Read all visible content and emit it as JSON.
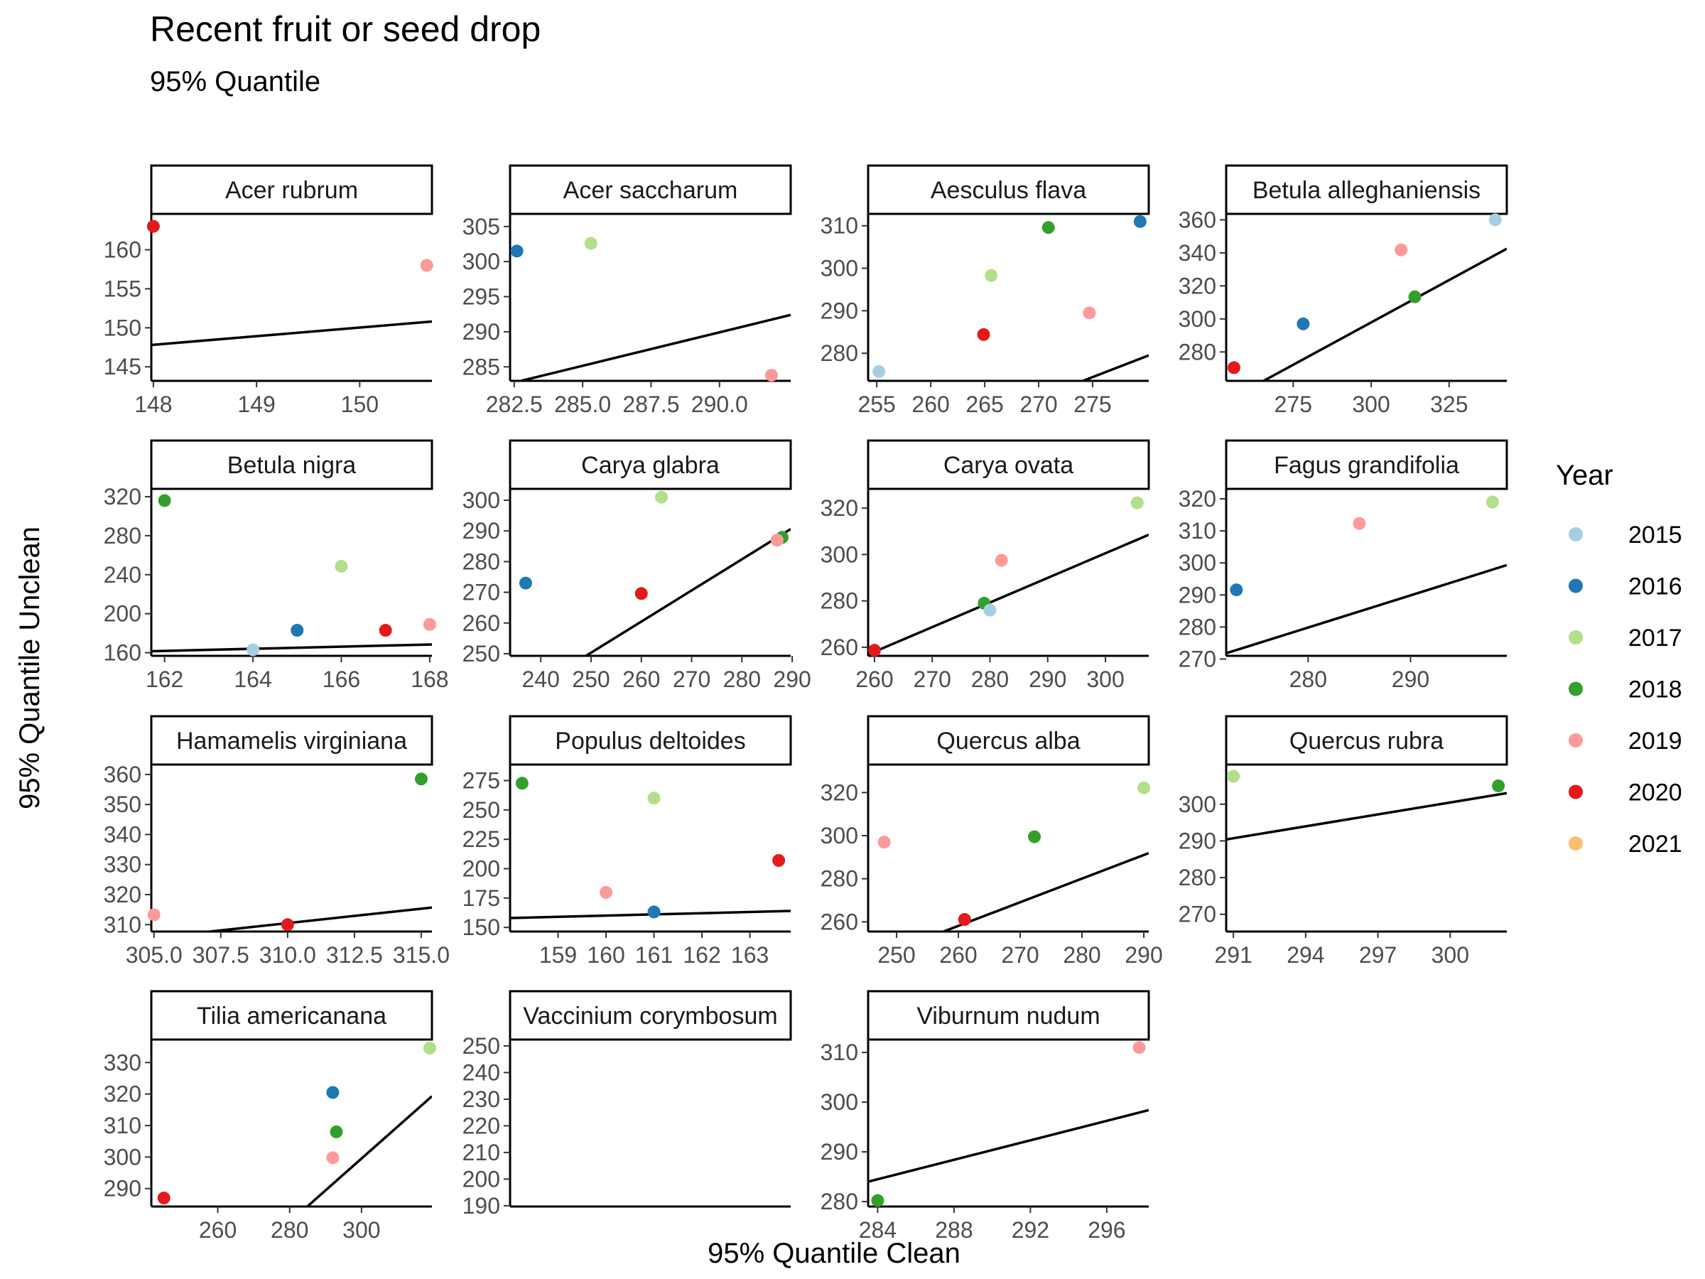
{
  "chart_data": {
    "type": "scatter",
    "title": "Recent fruit or seed drop",
    "subtitle": "95% Quantile",
    "xlabel": "95% Quantile Clean",
    "ylabel": "95% Quantile Unclean",
    "legend_title": "Year",
    "legend_placement": "right",
    "legend": [
      {
        "label": "2015",
        "color": "#a6cee3"
      },
      {
        "label": "2016",
        "color": "#1f78b4"
      },
      {
        "label": "2017",
        "color": "#b2df8a"
      },
      {
        "label": "2018",
        "color": "#33a02c"
      },
      {
        "label": "2019",
        "color": "#fb9a99"
      },
      {
        "label": "2020",
        "color": "#e31a1c"
      },
      {
        "label": "2021",
        "color": "#fdbf6f"
      }
    ],
    "panels": [
      {
        "name": "Acer rubrum",
        "xlim": [
          147.98,
          150.7
        ],
        "ylim": [
          143.2,
          164.6
        ],
        "xticks": [
          148,
          149,
          150
        ],
        "xtick_labels": [
          "148",
          "149",
          "150"
        ],
        "yticks": [
          145,
          150,
          155,
          160
        ],
        "ytick_labels": [
          "145",
          "150",
          "155",
          "160"
        ],
        "line": [
          [
            147.98,
            147.8
          ],
          [
            150.7,
            150.8
          ]
        ],
        "points": [
          {
            "year": "2020",
            "x": 148,
            "y": 163
          },
          {
            "year": "2019",
            "x": 150.65,
            "y": 158
          }
        ]
      },
      {
        "name": "Acer saccharum",
        "xlim": [
          282.35,
          292.6
        ],
        "ylim": [
          283.0,
          306.8
        ],
        "xticks": [
          282.5,
          285,
          287.5,
          290
        ],
        "xtick_labels": [
          "282.5",
          "285.0",
          "287.5",
          "290.0"
        ],
        "yticks": [
          285,
          290,
          295,
          300,
          305
        ],
        "ytick_labels": [
          "285",
          "290",
          "295",
          "300",
          "305"
        ],
        "line": [
          [
            282.75,
            283.0
          ],
          [
            292.6,
            292.4
          ]
        ],
        "points": [
          {
            "year": "2016",
            "x": 282.6,
            "y": 301.5
          },
          {
            "year": "2017",
            "x": 285.3,
            "y": 302.6
          },
          {
            "year": "2019",
            "x": 291.9,
            "y": 283.8
          }
        ]
      },
      {
        "name": "Aesculus flava",
        "xlim": [
          254.2,
          280.2
        ],
        "ylim": [
          273.5,
          312.8
        ],
        "xticks": [
          255,
          260,
          265,
          270,
          275
        ],
        "xtick_labels": [
          "255",
          "260",
          "265",
          "270",
          "275"
        ],
        "yticks": [
          280,
          290,
          300,
          310
        ],
        "ytick_labels": [
          "280",
          "290",
          "300",
          "310"
        ],
        "line": [
          [
            274.1,
            273.5
          ],
          [
            280.2,
            279.5
          ]
        ],
        "points": [
          {
            "year": "2015",
            "x": 255.2,
            "y": 275.7
          },
          {
            "year": "2020",
            "x": 264.9,
            "y": 284.4
          },
          {
            "year": "2017",
            "x": 265.6,
            "y": 298.3
          },
          {
            "year": "2018",
            "x": 270.9,
            "y": 309.6
          },
          {
            "year": "2019",
            "x": 274.7,
            "y": 289.5
          },
          {
            "year": "2016",
            "x": 279.4,
            "y": 311.0
          }
        ]
      },
      {
        "name": "Betula alleghaniensis",
        "xlim": [
          253.5,
          343.5
        ],
        "ylim": [
          262.5,
          363.6
        ],
        "xticks": [
          275,
          300,
          325
        ],
        "xtick_labels": [
          "275",
          "300",
          "325"
        ],
        "yticks": [
          280,
          300,
          320,
          340,
          360
        ],
        "ytick_labels": [
          "280",
          "300",
          "320",
          "340",
          "360"
        ],
        "line": [
          [
            265.5,
            262.5
          ],
          [
            343.5,
            342.5
          ]
        ],
        "points": [
          {
            "year": "2020",
            "x": 256,
            "y": 270.5
          },
          {
            "year": "2016",
            "x": 278.2,
            "y": 297.0
          },
          {
            "year": "2019",
            "x": 309.6,
            "y": 341.8
          },
          {
            "year": "2018",
            "x": 314.0,
            "y": 313.4
          },
          {
            "year": "2015",
            "x": 339.8,
            "y": 360.0
          }
        ]
      },
      {
        "name": "Betula nigra",
        "xlim": [
          161.7,
          168.05
        ],
        "ylim": [
          156.8,
          328.0
        ],
        "xticks": [
          162,
          164,
          166,
          168
        ],
        "xtick_labels": [
          "162",
          "164",
          "166",
          "168"
        ],
        "yticks": [
          160,
          200,
          240,
          280,
          320
        ],
        "ytick_labels": [
          "160",
          "200",
          "240",
          "280",
          "320"
        ],
        "line": [
          [
            161.7,
            161.5
          ],
          [
            168.05,
            168.5
          ]
        ],
        "points": [
          {
            "year": "2018",
            "x": 162,
            "y": 316.0
          },
          {
            "year": "2015",
            "x": 164,
            "y": 163.0
          },
          {
            "year": "2016",
            "x": 165,
            "y": 183.0
          },
          {
            "year": "2017",
            "x": 166,
            "y": 248.6
          },
          {
            "year": "2020",
            "x": 167,
            "y": 183.0
          },
          {
            "year": "2019",
            "x": 168,
            "y": 189.0
          }
        ]
      },
      {
        "name": "Carya glabra",
        "xlim": [
          233.9,
          289.7
        ],
        "ylim": [
          249.3,
          303.7
        ],
        "xticks": [
          240,
          250,
          260,
          270,
          280,
          290
        ],
        "xtick_labels": [
          "240",
          "250",
          "260",
          "270",
          "280",
          "290"
        ],
        "yticks": [
          250,
          260,
          270,
          280,
          290,
          300
        ],
        "ytick_labels": [
          "250",
          "260",
          "270",
          "280",
          "290",
          "300"
        ],
        "line": [
          [
            249.0,
            249.3
          ],
          [
            289.7,
            290.6
          ]
        ],
        "points": [
          {
            "year": "2016",
            "x": 237,
            "y": 273.0
          },
          {
            "year": "2020",
            "x": 260,
            "y": 269.6
          },
          {
            "year": "2017",
            "x": 264,
            "y": 301.0
          },
          {
            "year": "2018",
            "x": 288,
            "y": 287.9
          },
          {
            "year": "2019",
            "x": 287,
            "y": 287.0
          }
        ]
      },
      {
        "name": "Carya ovata",
        "xlim": [
          258.9,
          307.5
        ],
        "ylim": [
          256.3,
          328.3
        ],
        "xticks": [
          260,
          270,
          280,
          290,
          300
        ],
        "xtick_labels": [
          "260",
          "270",
          "280",
          "290",
          "300"
        ],
        "yticks": [
          260,
          280,
          300,
          320
        ],
        "ytick_labels": [
          "260",
          "280",
          "300",
          "320"
        ],
        "line": [
          [
            258.9,
            256.9
          ],
          [
            307.5,
            308.5
          ]
        ],
        "points": [
          {
            "year": "2020",
            "x": 260,
            "y": 258.7
          },
          {
            "year": "2018",
            "x": 279,
            "y": 279.0
          },
          {
            "year": "2015",
            "x": 280,
            "y": 276.0
          },
          {
            "year": "2019",
            "x": 282,
            "y": 297.5
          },
          {
            "year": "2017",
            "x": 305.5,
            "y": 322.3
          }
        ]
      },
      {
        "name": "Fagus grandifolia",
        "xlim": [
          272.0,
          299.4
        ],
        "ylim": [
          271.0,
          323.1
        ],
        "xticks": [
          280,
          290
        ],
        "xtick_labels": [
          "280",
          "290"
        ],
        "yticks": [
          270,
          280,
          290,
          300,
          310,
          320
        ],
        "ytick_labels": [
          "270",
          "280",
          "290",
          "300",
          "310",
          "320"
        ],
        "line": [
          [
            272.0,
            271.8
          ],
          [
            299.4,
            299.3
          ]
        ],
        "points": [
          {
            "year": "2016",
            "x": 273,
            "y": 291.6
          },
          {
            "year": "2019",
            "x": 285,
            "y": 312.3
          },
          {
            "year": "2017",
            "x": 298,
            "y": 319.0
          }
        ]
      },
      {
        "name": "Hamamelis virginiana",
        "xlim": [
          304.9,
          315.4
        ],
        "ylim": [
          307.7,
          363.3
        ],
        "xticks": [
          305,
          307.5,
          310,
          312.5,
          315
        ],
        "xtick_labels": [
          "305.0",
          "307.5",
          "310.0",
          "312.5",
          "315.0"
        ],
        "yticks": [
          310,
          320,
          330,
          340,
          350,
          360
        ],
        "ytick_labels": [
          "310",
          "320",
          "330",
          "340",
          "350",
          "360"
        ],
        "line": [
          [
            307.1,
            307.7
          ],
          [
            315.4,
            315.7
          ]
        ],
        "points": [
          {
            "year": "2019",
            "x": 305,
            "y": 313.3
          },
          {
            "year": "2020",
            "x": 310,
            "y": 310.0
          },
          {
            "year": "2018",
            "x": 315,
            "y": 358.5
          }
        ]
      },
      {
        "name": "Populus deltoides",
        "xlim": [
          158.0,
          163.85
        ],
        "ylim": [
          146.5,
          288.6
        ],
        "xticks": [
          159,
          160,
          161,
          162,
          163
        ],
        "xtick_labels": [
          "159",
          "160",
          "161",
          "162",
          "163"
        ],
        "yticks": [
          150,
          175,
          200,
          225,
          250,
          275
        ],
        "ytick_labels": [
          "150",
          "175",
          "200",
          "225",
          "250",
          "275"
        ],
        "line": [
          [
            158.0,
            158.0
          ],
          [
            163.85,
            164.0
          ]
        ],
        "points": [
          {
            "year": "2018",
            "x": 158.25,
            "y": 272.7
          },
          {
            "year": "2019",
            "x": 160,
            "y": 179.8
          },
          {
            "year": "2017",
            "x": 161,
            "y": 260.0
          },
          {
            "year": "2016",
            "x": 161,
            "y": 163.2
          },
          {
            "year": "2020",
            "x": 163.6,
            "y": 207.0
          }
        ]
      },
      {
        "name": "Quercus alba",
        "xlim": [
          245.4,
          290.8
        ],
        "ylim": [
          255.5,
          333.0
        ],
        "xticks": [
          250,
          260,
          270,
          280,
          290
        ],
        "xtick_labels": [
          "250",
          "260",
          "270",
          "280",
          "290"
        ],
        "yticks": [
          260,
          280,
          300,
          320
        ],
        "ytick_labels": [
          "260",
          "280",
          "300",
          "320"
        ],
        "line": [
          [
            257.6,
            255.5
          ],
          [
            290.8,
            291.9
          ]
        ],
        "points": [
          {
            "year": "2019",
            "x": 248,
            "y": 297.0
          },
          {
            "year": "2020",
            "x": 261,
            "y": 261.1
          },
          {
            "year": "2018",
            "x": 272.3,
            "y": 299.5
          },
          {
            "year": "2017",
            "x": 290,
            "y": 322.2
          }
        ]
      },
      {
        "name": "Quercus rubra",
        "xlim": [
          290.7,
          302.35
        ],
        "ylim": [
          265.3,
          310.8
        ],
        "xticks": [
          291,
          294,
          297,
          300
        ],
        "xtick_labels": [
          "291",
          "294",
          "297",
          "300"
        ],
        "yticks": [
          270,
          280,
          290,
          300
        ],
        "ytick_labels": [
          "270",
          "280",
          "290",
          "300"
        ],
        "line": [
          [
            290.7,
            290.4
          ],
          [
            302.35,
            303.0
          ]
        ],
        "points": [
          {
            "year": "2017",
            "x": 291,
            "y": 307.6
          },
          {
            "year": "2018",
            "x": 302,
            "y": 305.0
          }
        ]
      },
      {
        "name": "Tilia americanana",
        "xlim": [
          241.5,
          319.6
        ],
        "ylim": [
          284.3,
          337.3
        ],
        "xticks": [
          260,
          280,
          300
        ],
        "xtick_labels": [
          "260",
          "280",
          "300"
        ],
        "yticks": [
          290,
          300,
          310,
          320,
          330
        ],
        "ytick_labels": [
          "290",
          "300",
          "310",
          "320",
          "330"
        ],
        "line": [
          [
            284.9,
            284.3
          ],
          [
            319.6,
            319.3
          ]
        ],
        "points": [
          {
            "year": "2020",
            "x": 245,
            "y": 287.0
          },
          {
            "year": "2016",
            "x": 292,
            "y": 320.5
          },
          {
            "year": "2018",
            "x": 293,
            "y": 308.0
          },
          {
            "year": "2019",
            "x": 292,
            "y": 299.8
          },
          {
            "year": "2017",
            "x": 319,
            "y": 334.6
          }
        ]
      },
      {
        "name": "Vaccinium corymbosum",
        "xlim": [
          0,
          1
        ],
        "ylim": [
          189.7,
          252.4
        ],
        "xticks": [],
        "xtick_labels": [],
        "yticks": [
          190,
          200,
          210,
          220,
          230,
          240,
          250
        ],
        "ytick_labels": [
          "190",
          "200",
          "210",
          "220",
          "230",
          "240",
          "250"
        ],
        "line": [],
        "points": []
      },
      {
        "name": "Viburnum nudum",
        "xlim": [
          283.5,
          298.2
        ],
        "ylim": [
          279.0,
          312.6
        ],
        "xticks": [
          284,
          288,
          292,
          296
        ],
        "xtick_labels": [
          "284",
          "288",
          "292",
          "296"
        ],
        "yticks": [
          280,
          290,
          300,
          310
        ],
        "ytick_labels": [
          "280",
          "290",
          "300",
          "310"
        ],
        "line": [
          [
            283.5,
            284.0
          ],
          [
            298.2,
            298.4
          ]
        ],
        "points": [
          {
            "year": "2018",
            "x": 284,
            "y": 280.2
          },
          {
            "year": "2019",
            "x": 297.7,
            "y": 311.0
          }
        ]
      }
    ]
  }
}
